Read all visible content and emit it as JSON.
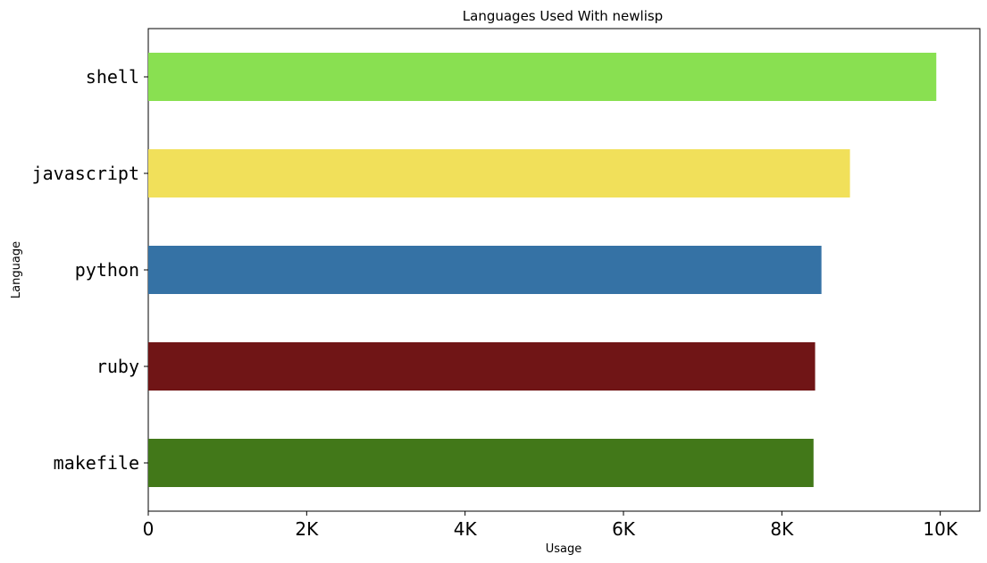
{
  "chart_data": {
    "type": "bar",
    "orientation": "horizontal",
    "title": "Languages Used With newlisp",
    "xlabel": "Usage",
    "ylabel": "Language",
    "categories": [
      "shell",
      "javascript",
      "python",
      "ruby",
      "makefile"
    ],
    "values": [
      9950,
      8860,
      8500,
      8420,
      8400
    ],
    "colors": [
      "#89e051",
      "#f1e05a",
      "#3572a5",
      "#701516",
      "#427819"
    ],
    "xlim": [
      0,
      10500
    ],
    "xticks": [
      0,
      2000,
      4000,
      6000,
      8000,
      10000
    ],
    "xtick_labels": [
      "0",
      "2K",
      "4K",
      "6K",
      "8K",
      "10K"
    ],
    "grid": false,
    "legend": "none"
  }
}
